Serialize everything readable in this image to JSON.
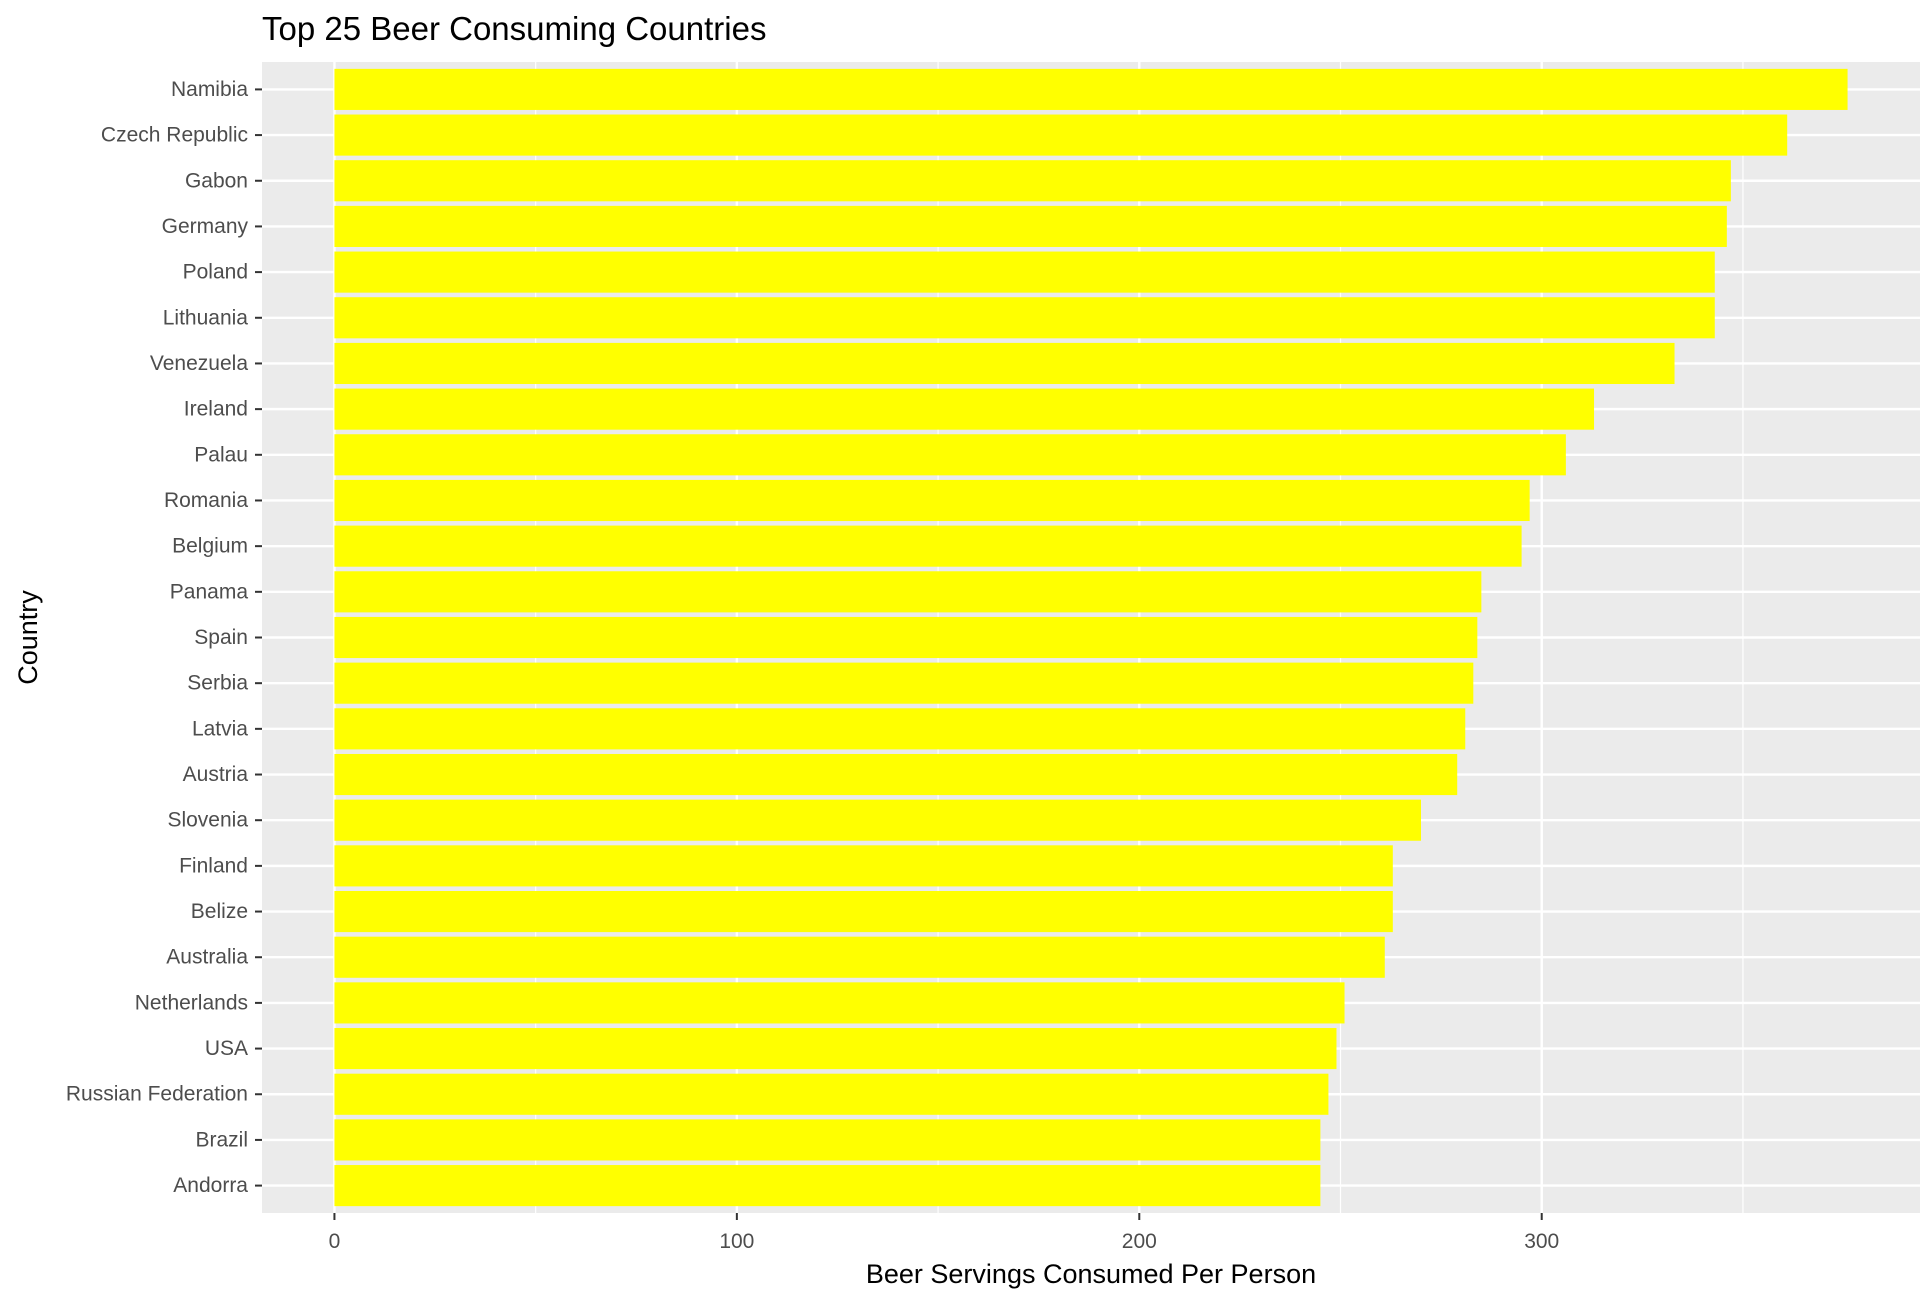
{
  "chart_data": {
    "type": "bar",
    "orientation": "horizontal",
    "title": "Top 25 Beer Consuming Countries",
    "xlabel": "Beer Servings Consumed Per Person",
    "ylabel": "Country",
    "xlim": [
      -18,
      394
    ],
    "x_ticks": [
      0,
      100,
      200,
      300
    ],
    "x_tick_labels": [
      "0",
      "100",
      "200",
      "300"
    ],
    "grid": true,
    "bar_color": "#FFFF00",
    "panel_color": "#EBEBEB",
    "grid_color": "#FFFFFF",
    "categories": [
      "Namibia",
      "Czech Republic",
      "Gabon",
      "Germany",
      "Poland",
      "Lithuania",
      "Venezuela",
      "Ireland",
      "Palau",
      "Romania",
      "Belgium",
      "Panama",
      "Spain",
      "Serbia",
      "Latvia",
      "Austria",
      "Slovenia",
      "Finland",
      "Belize",
      "Australia",
      "Netherlands",
      "USA",
      "Russian Federation",
      "Brazil",
      "Andorra"
    ],
    "values": [
      376,
      361,
      347,
      346,
      343,
      343,
      333,
      313,
      306,
      297,
      295,
      285,
      284,
      283,
      281,
      279,
      270,
      263,
      263,
      261,
      251,
      249,
      247,
      245,
      245
    ]
  }
}
